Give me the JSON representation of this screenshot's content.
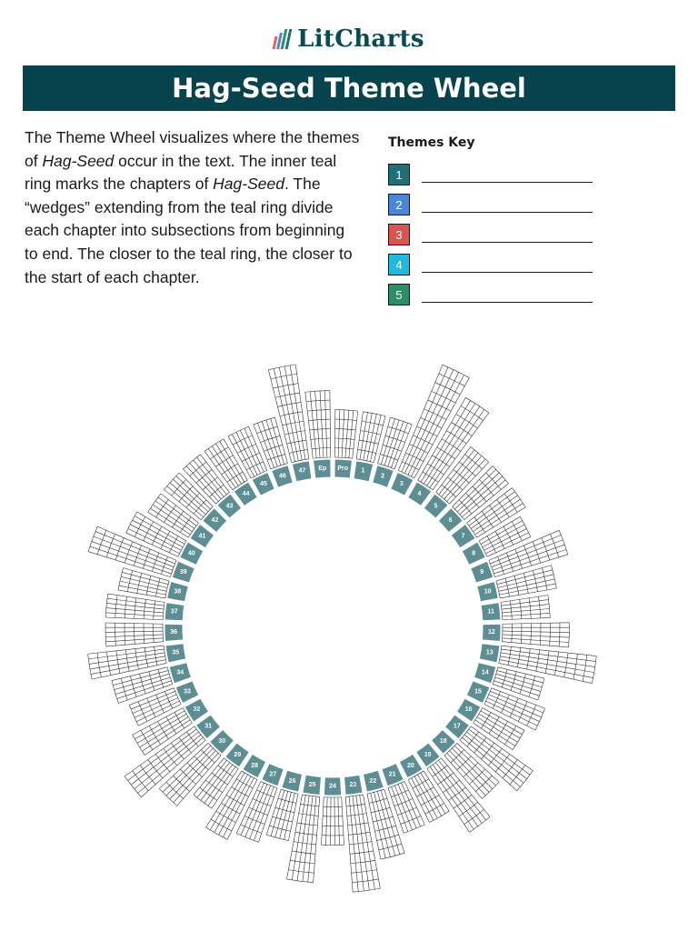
{
  "header": {
    "logo_text": "LitCharts",
    "title": "Hag-Seed Theme Wheel"
  },
  "intro": {
    "t1": "The Theme Wheel visualizes where the themes of ",
    "i1": "Hag-Seed",
    "t2": " occur in the text. The inner teal ring marks the chapters of ",
    "i2": "Hag-Seed",
    "t3": ". The “wedges” extending from the teal ring divide each chapter into subsections from beginning to end. The closer to the teal ring, the closer to the start of each chapter."
  },
  "themes_key": {
    "title": "Themes Key",
    "items": [
      {
        "label": "1",
        "color": "#1f6f78"
      },
      {
        "label": "2",
        "color": "#4a86d8"
      },
      {
        "label": "3",
        "color": "#d9534f"
      },
      {
        "label": "4",
        "color": "#22b8e0"
      },
      {
        "label": "5",
        "color": "#2a8f66"
      }
    ]
  },
  "colors": {
    "accent": "#06434c",
    "ring": "#5d8e93",
    "logo_bars": [
      "#e8605a",
      "#4a86d8",
      "#2a8f66",
      "#1f6f78"
    ]
  },
  "wheel": {
    "chapters": [
      "Pro",
      "1",
      "2",
      "3",
      "4",
      "5",
      "6",
      "7",
      "8",
      "9",
      "10",
      "11",
      "12",
      "13",
      "14",
      "15",
      "16",
      "17",
      "18",
      "19",
      "20",
      "21",
      "22",
      "23",
      "24",
      "25",
      "26",
      "27",
      "28",
      "29",
      "30",
      "31",
      "32",
      "33",
      "34",
      "35",
      "36",
      "37",
      "38",
      "39",
      "40",
      "41",
      "42",
      "43",
      "44",
      "45",
      "46",
      "47",
      "Ep"
    ],
    "subsections_per_chapter": [
      5,
      5,
      5,
      12,
      10,
      6,
      6,
      6,
      5,
      8,
      6,
      5,
      7,
      10,
      5,
      6,
      5,
      8,
      6,
      8,
      5,
      5,
      7,
      10,
      5,
      9,
      5,
      6,
      7,
      5,
      7,
      9,
      6,
      5,
      6,
      8,
      6,
      6,
      5,
      9,
      6,
      5,
      5,
      5,
      5,
      5,
      5,
      10,
      7
    ]
  }
}
